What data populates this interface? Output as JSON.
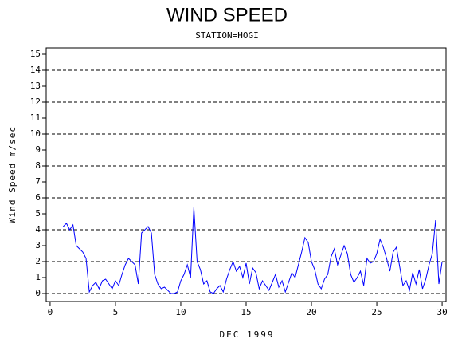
{
  "chart_data": {
    "type": "line",
    "title": "WIND SPEED",
    "subtitle": "STATION=HOGI",
    "xlabel": "DEC 1999",
    "ylabel": "Wind Speed m/sec",
    "xlim": [
      -0.3,
      30.3
    ],
    "ylim": [
      -0.5,
      15.4
    ],
    "xticks": [
      0,
      5,
      10,
      15,
      20,
      25,
      30
    ],
    "yticks": [
      0,
      1,
      2,
      3,
      4,
      5,
      6,
      7,
      8,
      9,
      10,
      11,
      12,
      13,
      14,
      15
    ],
    "ygrid": [
      0,
      2,
      4,
      6,
      8,
      10,
      12,
      14
    ],
    "series": [
      {
        "color": "#0000ff",
        "x": [
          1,
          1.25,
          1.5,
          1.75,
          2,
          2.25,
          2.5,
          2.75,
          3,
          3.25,
          3.5,
          3.75,
          4,
          4.25,
          4.5,
          4.75,
          5,
          5.25,
          5.5,
          5.75,
          6,
          6.25,
          6.5,
          6.75,
          7,
          7.25,
          7.5,
          7.75,
          8,
          8.25,
          8.5,
          8.75,
          9,
          9.25,
          9.5,
          9.75,
          10,
          10.25,
          10.5,
          10.75,
          11,
          11.25,
          11.5,
          11.75,
          12,
          12.25,
          12.5,
          12.75,
          13,
          13.25,
          13.5,
          13.75,
          14,
          14.25,
          14.5,
          14.75,
          15,
          15.25,
          15.5,
          15.75,
          16,
          16.25,
          16.5,
          16.75,
          17,
          17.25,
          17.5,
          17.75,
          18,
          18.25,
          18.5,
          18.75,
          19,
          19.25,
          19.5,
          19.75,
          20,
          20.25,
          20.5,
          20.75,
          21,
          21.25,
          21.5,
          21.75,
          22,
          22.25,
          22.5,
          22.75,
          23,
          23.25,
          23.5,
          23.75,
          24,
          24.25,
          24.5,
          24.75,
          25,
          25.25,
          25.5,
          25.75,
          26,
          26.25,
          26.5,
          26.75,
          27,
          27.25,
          27.5,
          27.75,
          28,
          28.25,
          28.5,
          28.75,
          29,
          29.25,
          29.5,
          29.75,
          30
        ],
        "values": [
          4.2,
          4.4,
          4.0,
          4.3,
          3.0,
          2.8,
          2.6,
          2.2,
          0.1,
          0.5,
          0.7,
          0.3,
          0.8,
          0.9,
          0.6,
          0.3,
          0.8,
          0.5,
          1.2,
          1.8,
          2.2,
          2.0,
          1.8,
          0.6,
          3.8,
          4.0,
          4.2,
          3.8,
          1.2,
          0.6,
          0.3,
          0.4,
          0.2,
          0,
          0,
          0.1,
          0.8,
          1.2,
          1.8,
          1.0,
          5.4,
          2.0,
          1.5,
          0.6,
          0.8,
          0.1,
          0,
          0.3,
          0.5,
          0.1,
          0.9,
          1.5,
          2.0,
          1.4,
          1.7,
          1.0,
          1.9,
          0.6,
          1.6,
          1.3,
          0.3,
          0.8,
          0.5,
          0.2,
          0.7,
          1.2,
          0.4,
          0.8,
          0.1,
          0.7,
          1.3,
          1.0,
          1.8,
          2.6,
          3.5,
          3.2,
          2.0,
          1.5,
          0.6,
          0.3,
          0.9,
          1.2,
          2.3,
          2.8,
          1.8,
          2.4,
          3.0,
          2.5,
          1.2,
          0.7,
          1.0,
          1.4,
          0.5,
          2.2,
          1.9,
          2.0,
          2.5,
          3.4,
          2.9,
          2.2,
          1.4,
          2.6,
          2.9,
          1.7,
          0.5,
          0.8,
          0.2,
          1.3,
          0.6,
          1.5,
          0.3,
          0.9,
          1.8,
          2.5,
          4.6,
          0.6,
          2.0
        ]
      }
    ]
  }
}
